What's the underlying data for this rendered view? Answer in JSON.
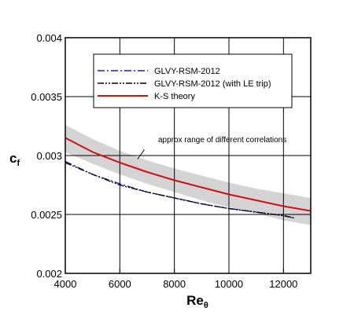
{
  "chart_data": {
    "type": "line",
    "xlabel": "Re",
    "xlabel_sub": "θ",
    "ylabel": "c",
    "ylabel_sub": "f",
    "xlim": [
      4000,
      13000
    ],
    "ylim": [
      0.002,
      0.004
    ],
    "grid": true,
    "legend_placement": "top-right",
    "x_ticks": [
      4000,
      6000,
      8000,
      10000,
      12000
    ],
    "x_tick_labels": [
      "4000",
      "6000",
      "8000",
      "10000",
      "12000"
    ],
    "y_ticks": [
      0.002,
      0.0025,
      0.003,
      0.0035,
      0.004
    ],
    "y_tick_labels": [
      "0.002",
      "0.0025",
      "0.003",
      "0.0035",
      "0.004"
    ],
    "band": {
      "x": [
        4000,
        5000,
        6000,
        7000,
        8000,
        9000,
        10000,
        11000,
        12000,
        13000
      ],
      "lower": [
        0.00303,
        0.00293,
        0.00284,
        0.00276,
        0.00269,
        0.00262,
        0.00256,
        0.00251,
        0.00245,
        0.00241
      ],
      "upper": [
        0.00326,
        0.00314,
        0.00304,
        0.00296,
        0.00289,
        0.00283,
        0.00277,
        0.00272,
        0.00268,
        0.00264
      ],
      "color": "#d4d4d4"
    },
    "series": [
      {
        "name": "GLVY-RSM-2012",
        "color": "#1f1fb4",
        "style": "dash-dot",
        "x": [
          4000,
          5000,
          6000,
          7000,
          8000,
          9000,
          10000,
          11000,
          12000,
          12400
        ],
        "y": [
          0.00295,
          0.00284,
          0.00276,
          0.00269,
          0.00264,
          0.00259,
          0.00255,
          0.00252,
          0.00249,
          0.00247
        ]
      },
      {
        "name": "GLVY-RSM-2012 (with LE trip)",
        "color": "#000000",
        "style": "dash-dot-dot",
        "x": [
          4000,
          5000,
          6000,
          7000,
          8000,
          9000,
          10000,
          11000,
          12000,
          12400
        ],
        "y": [
          0.00294,
          0.00284,
          0.00275,
          0.00269,
          0.00264,
          0.00259,
          0.00255,
          0.00252,
          0.00249,
          0.00247
        ]
      },
      {
        "name": "K-S theory",
        "color": "#d01010",
        "style": "solid",
        "x": [
          4000,
          5000,
          6000,
          7000,
          8000,
          9000,
          10000,
          11000,
          12000,
          13000
        ],
        "y": [
          0.00315,
          0.00303,
          0.00294,
          0.00286,
          0.00279,
          0.00273,
          0.00267,
          0.00262,
          0.00257,
          0.00253
        ]
      }
    ],
    "annotation": {
      "text": "approx range of different correlations",
      "arrow_from": [
        6900,
        0.00305
      ],
      "arrow_to": [
        6650,
        0.00297
      ]
    }
  }
}
